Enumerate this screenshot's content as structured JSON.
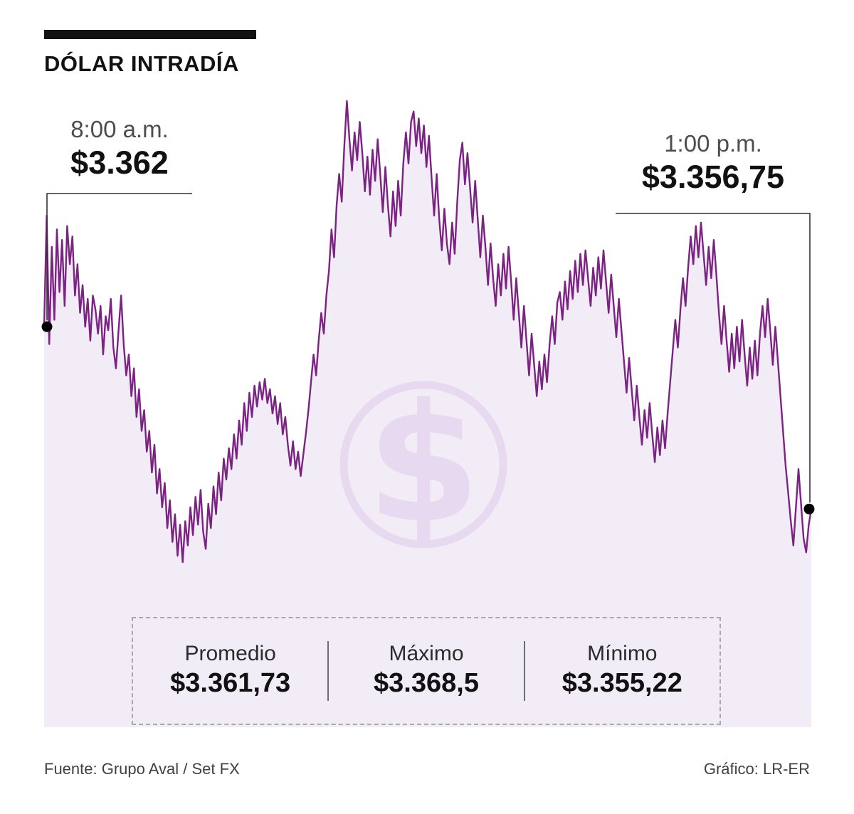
{
  "title": "DÓLAR INTRADÍA",
  "colors": {
    "line": "#7b2382",
    "fill": "#f2ecf7",
    "watermark": "#e7d9ef",
    "marker": "#000000"
  },
  "annotations": {
    "start": {
      "time": "8:00 a.m.",
      "value": "$3.362"
    },
    "end": {
      "time": "1:00 p.m.",
      "value": "$3.356,75"
    }
  },
  "stats": [
    {
      "label": "Promedio",
      "value": "$3.361,73"
    },
    {
      "label": "Máximo",
      "value": "$3.368,5"
    },
    {
      "label": "Mínimo",
      "value": "$3.355,22"
    }
  ],
  "footer": {
    "source": "Fuente: Grupo Aval / Set FX",
    "credit": "Gráfico: LR-ER"
  },
  "watermark_glyph": "$",
  "chart_data": {
    "type": "area",
    "title": "DÓLAR INTRADÍA",
    "x_start_label": "8:00 a.m.",
    "x_end_label": "1:00 p.m.",
    "start_value": 3362,
    "end_value": 3356.75,
    "average": 3361.73,
    "max": 3368.5,
    "min": 3355.22,
    "ylim": [
      3355.22,
      3368.5
    ],
    "grid": false,
    "legend": false,
    "values": [
      3362.0,
      3365.2,
      3361.5,
      3364.3,
      3362.2,
      3364.8,
      3363.0,
      3364.5,
      3362.6,
      3364.9,
      3363.8,
      3364.6,
      3362.9,
      3363.8,
      3362.4,
      3363.2,
      3362.0,
      3362.8,
      3361.6,
      3362.9,
      3362.5,
      3361.8,
      3362.6,
      3361.2,
      3362.3,
      3361.9,
      3362.8,
      3361.4,
      3360.8,
      3361.9,
      3362.9,
      3361.5,
      3360.6,
      3361.2,
      3360.0,
      3360.8,
      3359.4,
      3360.2,
      3359.0,
      3359.6,
      3358.4,
      3359.0,
      3357.8,
      3358.6,
      3357.2,
      3357.9,
      3356.8,
      3357.5,
      3356.2,
      3357.0,
      3355.8,
      3356.6,
      3355.4,
      3356.3,
      3355.22,
      3356.4,
      3355.7,
      3356.8,
      3356.0,
      3357.1,
      3356.3,
      3357.3,
      3356.1,
      3355.6,
      3356.9,
      3356.2,
      3357.4,
      3356.6,
      3357.8,
      3357.0,
      3358.2,
      3357.6,
      3358.5,
      3357.9,
      3358.9,
      3358.2,
      3359.3,
      3358.6,
      3359.8,
      3359.0,
      3360.1,
      3359.4,
      3360.3,
      3359.7,
      3360.4,
      3359.9,
      3360.5,
      3359.8,
      3360.2,
      3359.5,
      3360.0,
      3359.2,
      3359.8,
      3358.9,
      3359.4,
      3358.6,
      3358.0,
      3358.7,
      3357.9,
      3358.4,
      3357.7,
      3358.3,
      3358.9,
      3359.6,
      3360.4,
      3361.2,
      3360.6,
      3361.6,
      3362.4,
      3361.8,
      3362.9,
      3363.6,
      3364.8,
      3364.0,
      3365.5,
      3366.4,
      3365.6,
      3367.2,
      3368.5,
      3367.4,
      3366.5,
      3367.6,
      3366.8,
      3367.9,
      3367.0,
      3365.9,
      3366.9,
      3365.8,
      3367.1,
      3366.2,
      3367.4,
      3366.4,
      3365.3,
      3366.6,
      3365.5,
      3364.6,
      3365.9,
      3364.9,
      3366.2,
      3365.2,
      3366.7,
      3367.6,
      3366.7,
      3367.9,
      3368.2,
      3367.2,
      3368.0,
      3367.0,
      3367.8,
      3366.6,
      3367.5,
      3366.3,
      3365.2,
      3366.4,
      3365.1,
      3364.2,
      3365.4,
      3364.4,
      3363.8,
      3365.0,
      3364.1,
      3365.6,
      3366.8,
      3367.3,
      3366.1,
      3367.0,
      3366.0,
      3365.0,
      3366.2,
      3365.1,
      3364.0,
      3365.2,
      3364.3,
      3363.2,
      3364.4,
      3363.4,
      3362.6,
      3363.8,
      3362.9,
      3364.1,
      3363.1,
      3364.3,
      3363.3,
      3362.2,
      3363.4,
      3362.4,
      3361.4,
      3362.6,
      3361.6,
      3360.6,
      3361.8,
      3360.9,
      3360.0,
      3361.0,
      3360.2,
      3361.2,
      3360.4,
      3361.5,
      3362.3,
      3361.5,
      3362.7,
      3363.0,
      3362.2,
      3363.3,
      3362.5,
      3363.6,
      3362.8,
      3363.9,
      3363.0,
      3364.1,
      3363.2,
      3364.2,
      3363.4,
      3362.6,
      3363.7,
      3362.9,
      3364.0,
      3363.1,
      3364.2,
      3363.3,
      3362.4,
      3363.5,
      3362.6,
      3361.7,
      3362.8,
      3361.9,
      3361.0,
      3360.1,
      3361.1,
      3360.2,
      3359.3,
      3360.3,
      3359.4,
      3358.6,
      3359.6,
      3358.8,
      3359.8,
      3358.9,
      3358.1,
      3359.1,
      3358.3,
      3359.3,
      3358.5,
      3359.5,
      3360.4,
      3361.3,
      3362.2,
      3361.4,
      3362.5,
      3363.4,
      3362.6,
      3363.7,
      3364.6,
      3363.8,
      3364.9,
      3364.0,
      3365.0,
      3364.1,
      3363.2,
      3364.3,
      3363.4,
      3364.5,
      3363.5,
      3362.4,
      3361.5,
      3362.6,
      3361.6,
      3360.7,
      3361.8,
      3360.8,
      3362.0,
      3361.0,
      3362.2,
      3361.2,
      3360.3,
      3361.4,
      3360.5,
      3361.6,
      3360.6,
      3361.8,
      3362.6,
      3361.7,
      3362.8,
      3361.9,
      3360.9,
      3362.0,
      3361.0,
      3360.0,
      3359.0,
      3358.0,
      3357.2,
      3356.4,
      3355.7,
      3356.8,
      3357.9,
      3356.9,
      3355.9,
      3355.5,
      3356.3,
      3356.75
    ]
  }
}
